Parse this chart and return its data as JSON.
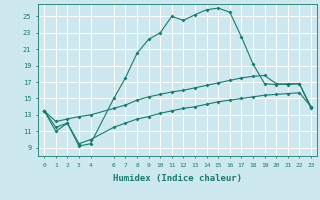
{
  "title": "",
  "xlabel": "Humidex (Indice chaleur)",
  "background_color": "#cde8ee",
  "grid_color": "#ffffff",
  "line_color": "#1a7a6e",
  "x_ticks": [
    0,
    1,
    2,
    3,
    4,
    6,
    7,
    8,
    9,
    10,
    11,
    12,
    13,
    14,
    15,
    16,
    17,
    18,
    19,
    20,
    21,
    22,
    23
  ],
  "y_ticks": [
    9,
    11,
    13,
    15,
    17,
    19,
    21,
    23,
    25
  ],
  "xlim": [
    -0.5,
    23.5
  ],
  "ylim": [
    8.0,
    26.5
  ],
  "series1_x": [
    0,
    1,
    2,
    3,
    4,
    6,
    7,
    8,
    9,
    10,
    11,
    12,
    13,
    14,
    15,
    16,
    17,
    18,
    19,
    20,
    21,
    22,
    23
  ],
  "series1_y": [
    13.5,
    11.0,
    12.0,
    9.2,
    9.5,
    15.0,
    17.5,
    20.5,
    22.2,
    23.0,
    25.0,
    24.5,
    25.2,
    25.8,
    26.0,
    25.5,
    22.5,
    19.2,
    16.8,
    16.7,
    16.8,
    16.8,
    13.8
  ],
  "series2_x": [
    0,
    1,
    2,
    3,
    4,
    6,
    7,
    8,
    9,
    10,
    11,
    12,
    13,
    14,
    15,
    16,
    17,
    18,
    19,
    20,
    21,
    22,
    23
  ],
  "series2_y": [
    13.5,
    12.2,
    12.5,
    12.8,
    13.0,
    13.8,
    14.2,
    14.8,
    15.2,
    15.5,
    15.8,
    16.0,
    16.3,
    16.6,
    16.9,
    17.2,
    17.5,
    17.7,
    17.8,
    16.8,
    16.7,
    16.8,
    14.0
  ],
  "series3_x": [
    0,
    1,
    2,
    3,
    4,
    6,
    7,
    8,
    9,
    10,
    11,
    12,
    13,
    14,
    15,
    16,
    17,
    18,
    19,
    20,
    21,
    22,
    23
  ],
  "series3_y": [
    13.5,
    11.5,
    12.0,
    9.5,
    10.0,
    11.5,
    12.0,
    12.5,
    12.8,
    13.2,
    13.5,
    13.8,
    14.0,
    14.3,
    14.6,
    14.8,
    15.0,
    15.2,
    15.4,
    15.5,
    15.6,
    15.7,
    14.0
  ]
}
